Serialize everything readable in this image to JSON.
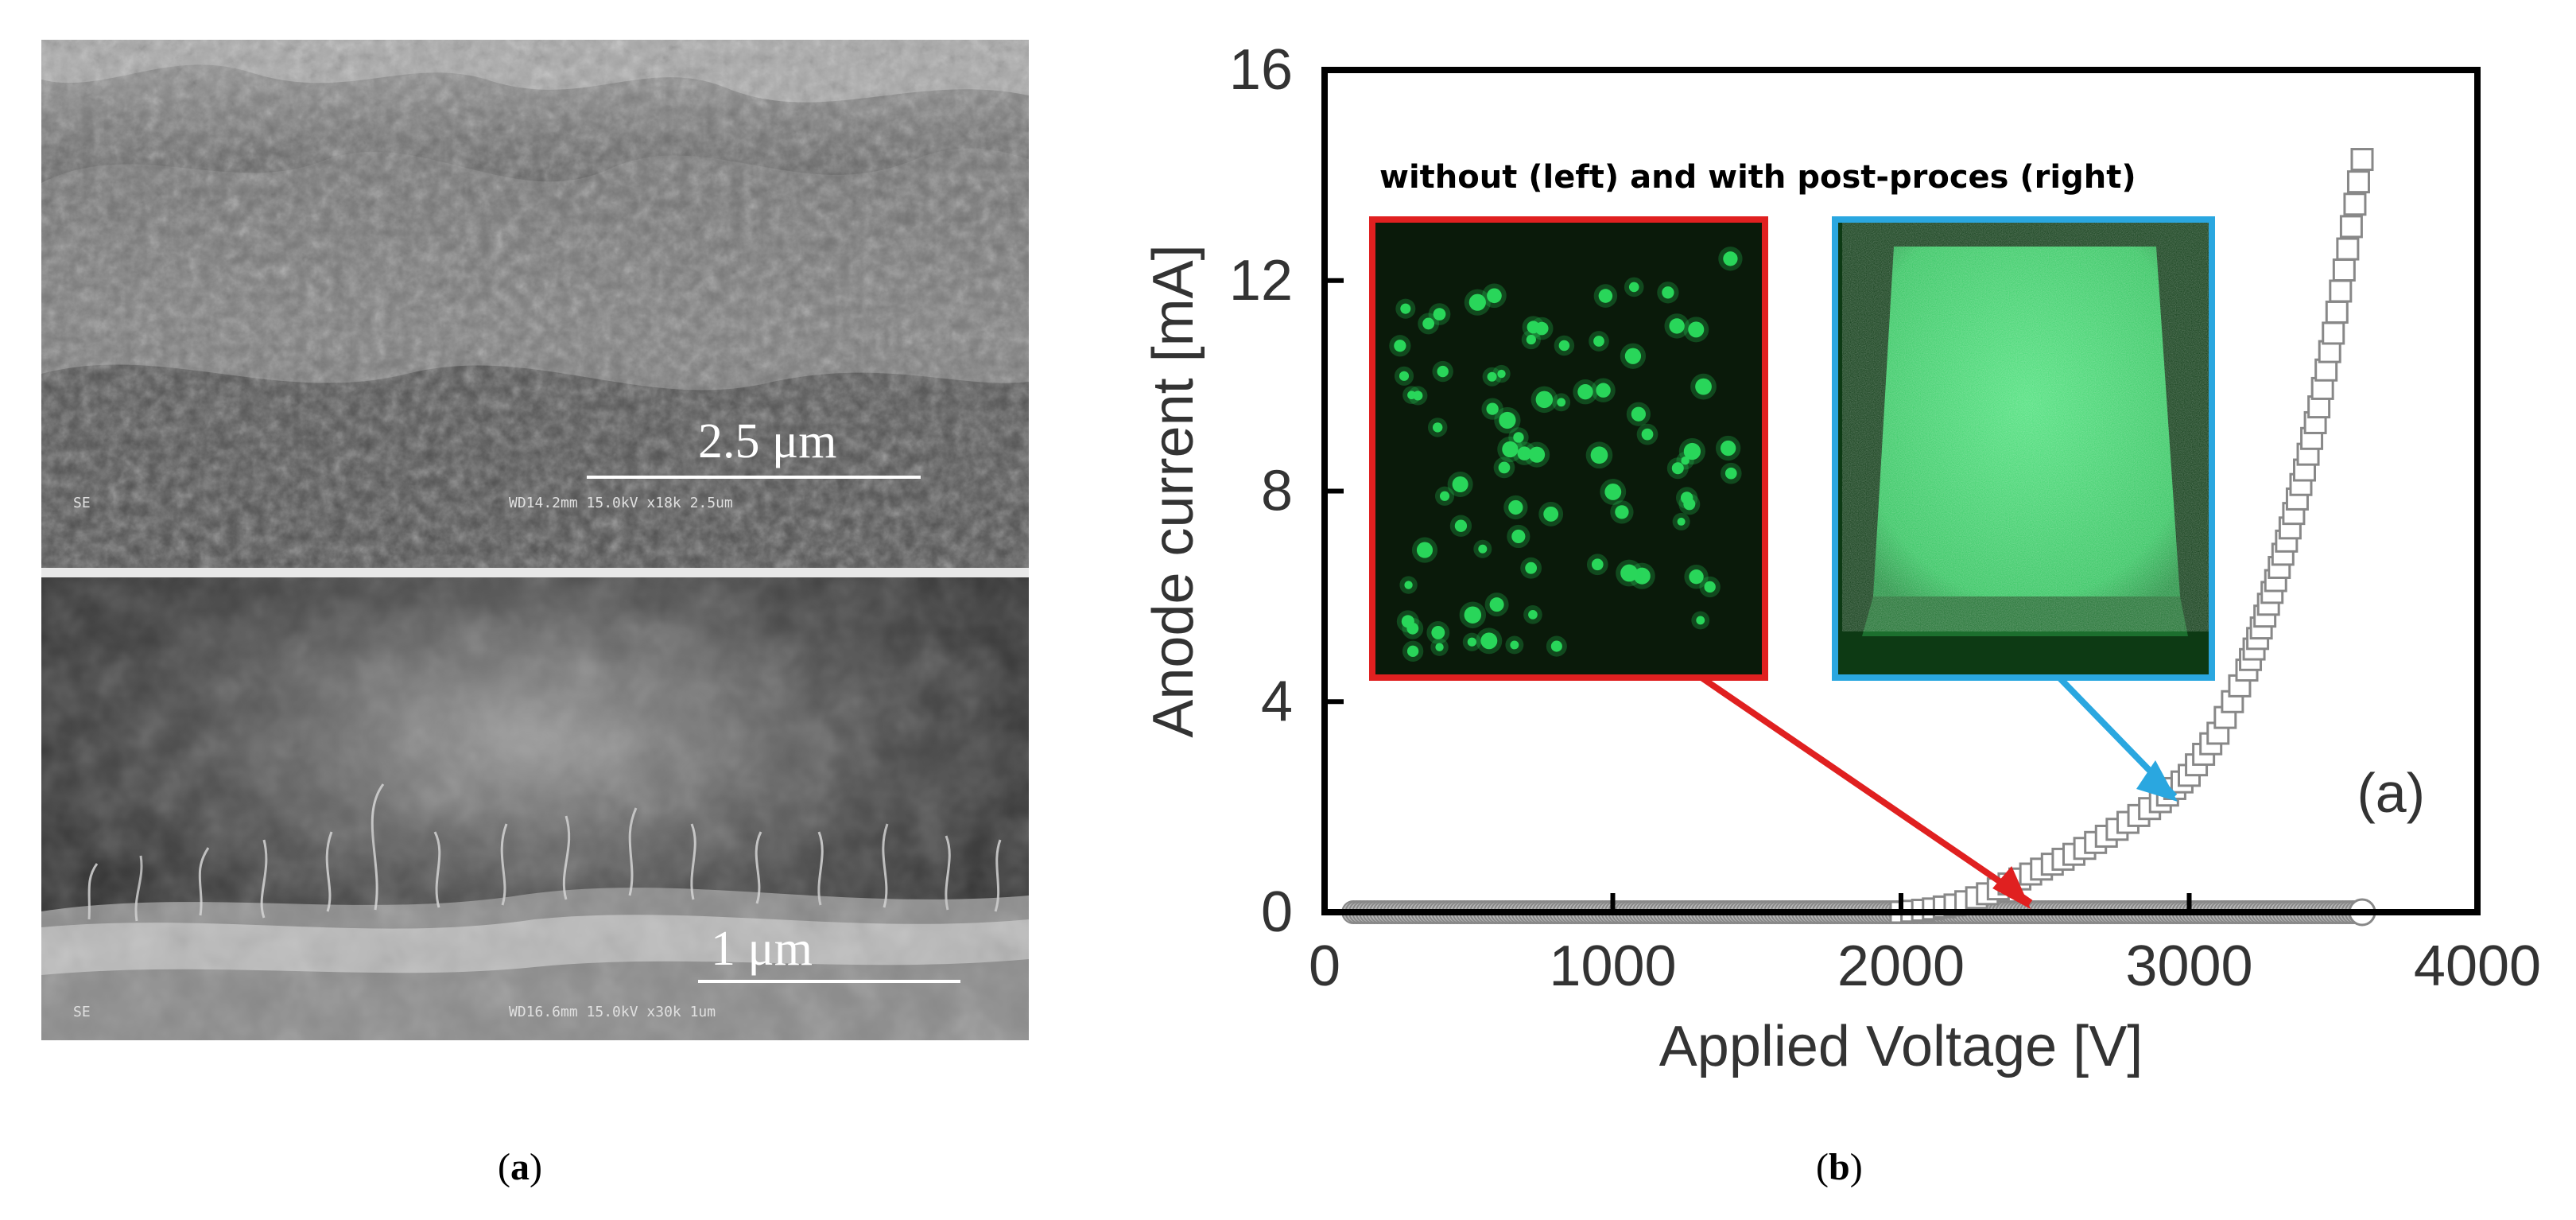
{
  "panel_a": {
    "top_scale_label": "2.5 μm",
    "top_meta_left": "SE",
    "top_meta_right": "WD14.2mm 15.0kV x18k   2.5um",
    "bottom_scale_label": "1 μm",
    "bottom_meta_left": "SE",
    "bottom_meta_right": "WD16.6mm 15.0kV x30k   1um"
  },
  "captions": {
    "a": "a",
    "b": "b"
  },
  "chart_data": {
    "type": "scatter",
    "xlabel": "Applied Voltage [V]",
    "ylabel": "Anode current [mA]",
    "xlim": [
      0,
      4000
    ],
    "ylim": [
      0,
      16
    ],
    "x_ticks": [
      "0",
      "1000",
      "2000",
      "3000",
      "4000"
    ],
    "y_ticks": [
      "0",
      "4",
      "8",
      "12",
      "16"
    ],
    "annotation": "(a)",
    "inset_title": "without (left) and with post-proces (right)",
    "grid": false,
    "series": [
      {
        "marker": "circle",
        "color": "#888888",
        "points": [
          [
            100,
            0
          ],
          [
            3600,
            0
          ]
        ]
      },
      {
        "marker": "square",
        "color": "#888888",
        "points": [
          [
            2000,
            0
          ],
          [
            2100,
            0.05
          ],
          [
            2200,
            0.15
          ],
          [
            2300,
            0.35
          ],
          [
            2400,
            0.6
          ],
          [
            2500,
            0.85
          ],
          [
            2600,
            1.1
          ],
          [
            2700,
            1.4
          ],
          [
            2800,
            1.75
          ],
          [
            2900,
            2.1
          ],
          [
            3000,
            2.6
          ],
          [
            3100,
            3.4
          ],
          [
            3200,
            4.6
          ],
          [
            3250,
            5.4
          ],
          [
            3300,
            6.3
          ],
          [
            3350,
            7.3
          ],
          [
            3400,
            8.4
          ],
          [
            3450,
            9.6
          ],
          [
            3500,
            11.0
          ],
          [
            3550,
            12.6
          ],
          [
            3600,
            14.3
          ]
        ]
      }
    ],
    "inset_colors": {
      "without_frame": "#e02020",
      "with_frame": "#2aa7e0",
      "emission": "#29d65a"
    }
  }
}
